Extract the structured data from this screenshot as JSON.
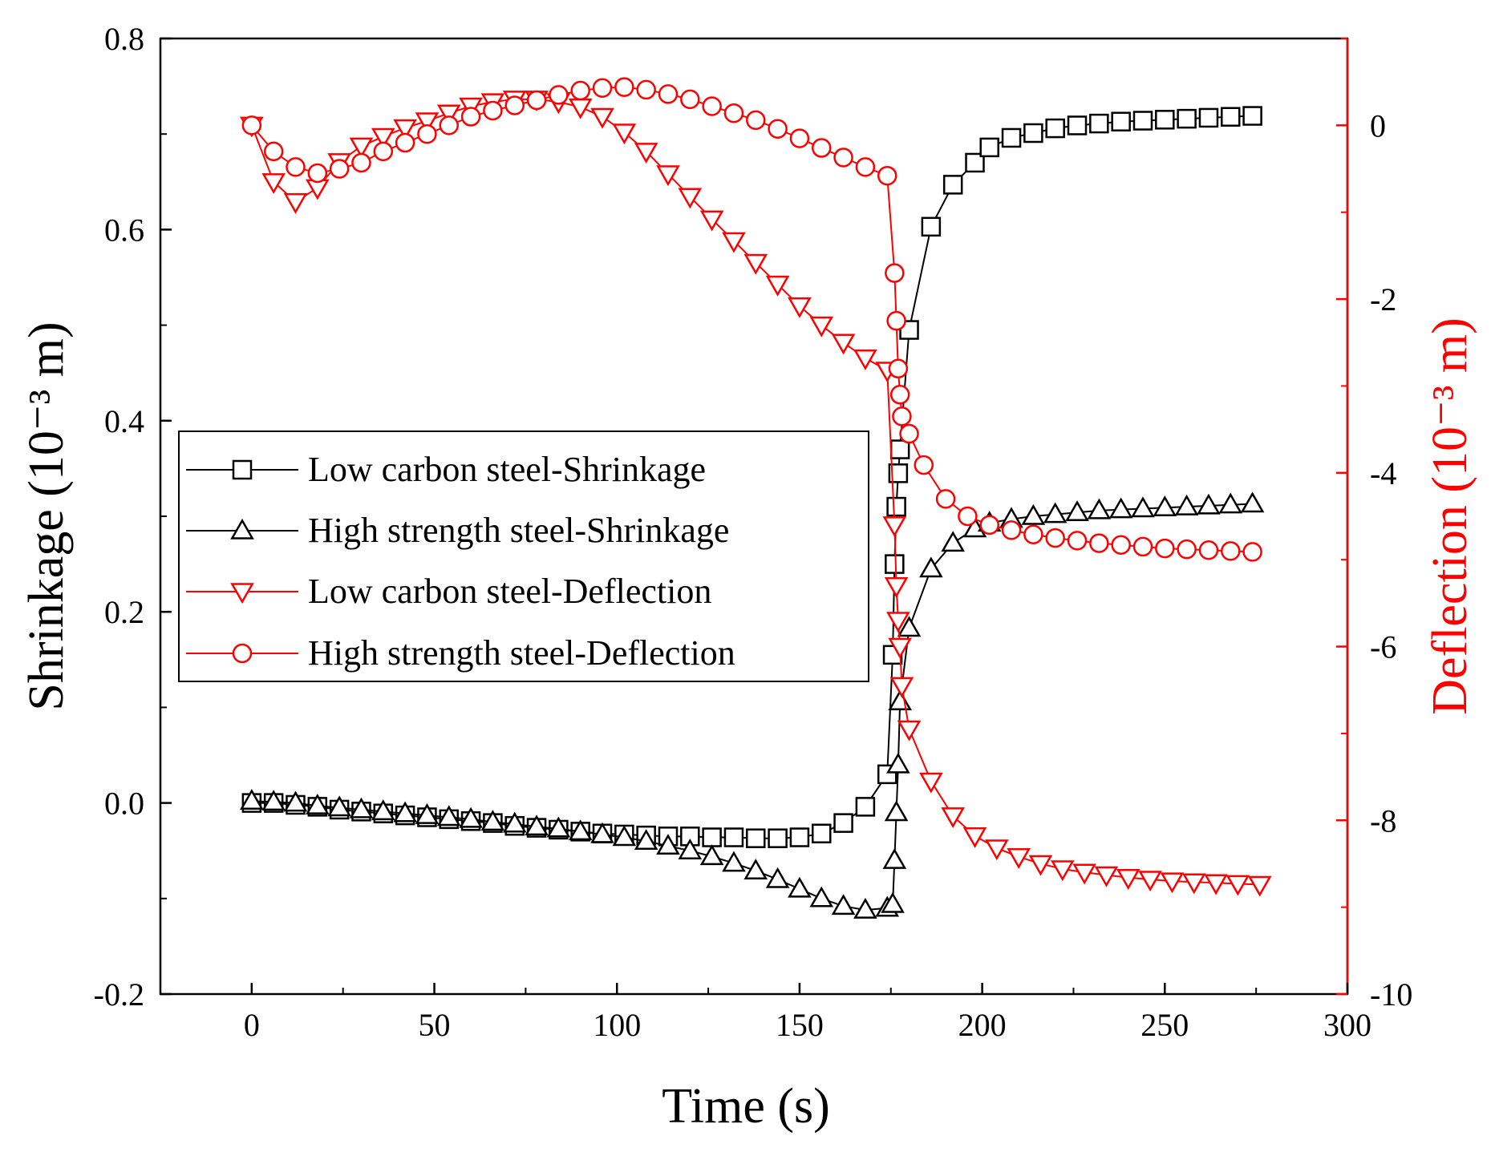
{
  "chart_data": {
    "type": "line",
    "title": "",
    "xlabel": "Time (s)",
    "ylabel_left": "Shrinkage (10⁻³ m)",
    "ylabel_right": "Deflection (10⁻³ m)",
    "xlim": [
      -25,
      300
    ],
    "ylim_left": [
      -0.2,
      0.8
    ],
    "ylim_right": [
      -10,
      1
    ],
    "x_ticks": [
      0,
      50,
      100,
      150,
      200,
      250,
      300
    ],
    "y_left_ticks": [
      -0.2,
      0.0,
      0.2,
      0.4,
      0.6,
      0.8
    ],
    "y_left_tick_labels": [
      "-0.2",
      "0.0",
      "0.2",
      "0.4",
      "0.6",
      "0.8"
    ],
    "y_right_ticks": [
      -10,
      -8,
      -6,
      -4,
      -2,
      0
    ],
    "grid": false,
    "legend_position": "center-left",
    "colors": {
      "black": "#000000",
      "red": "#ff0000"
    },
    "series": [
      {
        "name": "Low carbon steel-Shrinkage",
        "axis": "left",
        "color": "#000000",
        "marker": "square",
        "x": [
          0,
          6,
          12,
          18,
          24,
          30,
          36,
          42,
          48,
          54,
          60,
          66,
          72,
          78,
          84,
          90,
          96,
          102,
          108,
          114,
          120,
          126,
          132,
          138,
          144,
          150,
          156,
          162,
          168,
          174,
          175.5,
          176,
          176.5,
          177,
          177.5,
          180,
          186,
          192,
          198,
          202,
          208,
          214,
          220,
          226,
          232,
          238,
          244,
          250,
          256,
          262,
          268,
          274
        ],
        "y": [
          0.0,
          0.0,
          -0.002,
          -0.004,
          -0.007,
          -0.009,
          -0.011,
          -0.013,
          -0.015,
          -0.017,
          -0.019,
          -0.021,
          -0.024,
          -0.026,
          -0.028,
          -0.03,
          -0.032,
          -0.033,
          -0.034,
          -0.035,
          -0.035,
          -0.036,
          -0.036,
          -0.037,
          -0.037,
          -0.036,
          -0.032,
          -0.021,
          -0.004,
          0.03,
          0.155,
          0.25,
          0.31,
          0.345,
          0.37,
          0.495,
          0.603,
          0.647,
          0.67,
          0.686,
          0.696,
          0.701,
          0.706,
          0.709,
          0.711,
          0.713,
          0.714,
          0.715,
          0.716,
          0.717,
          0.718,
          0.719
        ]
      },
      {
        "name": "High strength steel-Shrinkage",
        "axis": "left",
        "color": "#000000",
        "marker": "triangle-up",
        "x": [
          0,
          6,
          12,
          18,
          24,
          30,
          36,
          42,
          48,
          54,
          60,
          66,
          72,
          78,
          84,
          90,
          96,
          102,
          108,
          114,
          120,
          126,
          132,
          138,
          144,
          150,
          156,
          162,
          168,
          174,
          175.5,
          176,
          176.5,
          177,
          177.5,
          180,
          186,
          192,
          198,
          202,
          208,
          214,
          220,
          226,
          232,
          238,
          244,
          250,
          256,
          262,
          268,
          274
        ],
        "y": [
          0.002,
          0.001,
          0.0,
          -0.003,
          -0.005,
          -0.007,
          -0.009,
          -0.011,
          -0.013,
          -0.015,
          -0.017,
          -0.02,
          -0.022,
          -0.025,
          -0.027,
          -0.03,
          -0.033,
          -0.036,
          -0.04,
          -0.045,
          -0.05,
          -0.056,
          -0.063,
          -0.071,
          -0.08,
          -0.09,
          -0.1,
          -0.108,
          -0.112,
          -0.11,
          -0.106,
          -0.06,
          -0.01,
          0.04,
          0.106,
          0.183,
          0.245,
          0.272,
          0.287,
          0.293,
          0.297,
          0.3,
          0.302,
          0.304,
          0.306,
          0.307,
          0.308,
          0.309,
          0.31,
          0.311,
          0.312,
          0.313
        ]
      },
      {
        "name": "Low carbon steel-Deflection",
        "axis": "right",
        "color": "#ff0000",
        "marker": "triangle-down",
        "x": [
          0,
          6,
          12,
          18,
          24,
          30,
          36,
          42,
          48,
          54,
          60,
          66,
          72,
          78,
          84,
          90,
          96,
          102,
          108,
          114,
          120,
          126,
          132,
          138,
          144,
          150,
          156,
          162,
          168,
          174,
          176,
          176.5,
          177,
          177.5,
          178,
          180,
          186,
          192,
          198,
          204,
          210,
          216,
          222,
          228,
          234,
          240,
          246,
          252,
          258,
          264,
          270,
          276
        ],
        "y": [
          0.0,
          -0.65,
          -0.88,
          -0.72,
          -0.42,
          -0.24,
          -0.13,
          -0.03,
          0.05,
          0.14,
          0.22,
          0.27,
          0.3,
          0.3,
          0.27,
          0.21,
          0.1,
          -0.08,
          -0.3,
          -0.56,
          -0.82,
          -1.08,
          -1.33,
          -1.58,
          -1.83,
          -2.08,
          -2.3,
          -2.5,
          -2.68,
          -2.82,
          -4.6,
          -5.3,
          -5.7,
          -6.0,
          -6.45,
          -6.95,
          -7.55,
          -7.95,
          -8.18,
          -8.32,
          -8.42,
          -8.5,
          -8.56,
          -8.6,
          -8.63,
          -8.66,
          -8.68,
          -8.7,
          -8.71,
          -8.72,
          -8.73,
          -8.74
        ]
      },
      {
        "name": "High strength steel-Deflection",
        "axis": "right",
        "color": "#ff0000",
        "marker": "circle",
        "x": [
          0,
          6,
          12,
          18,
          24,
          30,
          36,
          42,
          48,
          54,
          60,
          66,
          72,
          78,
          84,
          90,
          96,
          102,
          108,
          114,
          120,
          126,
          132,
          138,
          144,
          150,
          156,
          162,
          168,
          174,
          176,
          176.5,
          177,
          177.5,
          178,
          180,
          184,
          190,
          196,
          202,
          208,
          214,
          220,
          226,
          232,
          238,
          244,
          250,
          256,
          262,
          268,
          274
        ],
        "y": [
          0.0,
          -0.3,
          -0.48,
          -0.55,
          -0.5,
          -0.43,
          -0.3,
          -0.2,
          -0.1,
          0.0,
          0.1,
          0.17,
          0.23,
          0.29,
          0.35,
          0.4,
          0.43,
          0.44,
          0.41,
          0.36,
          0.3,
          0.22,
          0.14,
          0.06,
          -0.04,
          -0.15,
          -0.26,
          -0.37,
          -0.48,
          -0.58,
          -1.7,
          -2.25,
          -2.8,
          -3.1,
          -3.35,
          -3.55,
          -3.91,
          -4.3,
          -4.5,
          -4.6,
          -4.66,
          -4.71,
          -4.75,
          -4.78,
          -4.81,
          -4.83,
          -4.85,
          -4.87,
          -4.88,
          -4.89,
          -4.9,
          -4.91
        ]
      }
    ]
  }
}
